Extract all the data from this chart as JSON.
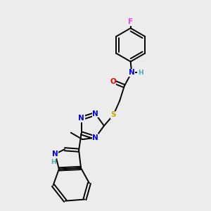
{
  "background_color": "#ececec",
  "bond_color": "#000000",
  "atom_colors": {
    "N": "#0000ee",
    "O": "#ee0000",
    "S": "#bbaa00",
    "F": "#ee44ee",
    "H": "#44aaaa",
    "C": "#000000"
  },
  "lw": 1.4,
  "fs": 7.5
}
